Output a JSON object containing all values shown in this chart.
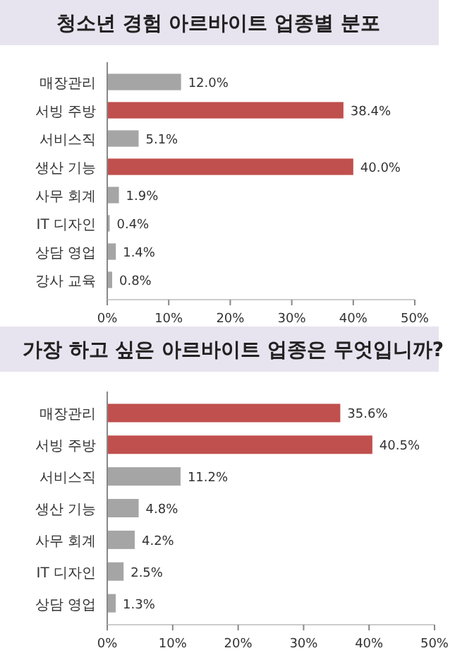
{
  "chart_data": [
    {
      "type": "bar",
      "orientation": "horizontal",
      "title": "청소년 경험 아르바이트 업종별 분포",
      "categories": [
        "매장관리",
        "서빙 주방",
        "서비스직",
        "생산 기능",
        "사무 회계",
        "IT 디자인",
        "상담 영업",
        "강사 교육"
      ],
      "values": [
        12.0,
        38.4,
        5.1,
        40.0,
        1.9,
        0.4,
        1.4,
        0.8
      ],
      "value_labels": [
        "12.0%",
        "38.4%",
        "5.1%",
        "40.0%",
        "1.9%",
        "0.4%",
        "1.4%",
        "0.8%"
      ],
      "colors": [
        "#a5a5a5",
        "#c0504d",
        "#a5a5a5",
        "#c0504d",
        "#a5a5a5",
        "#a5a5a5",
        "#a5a5a5",
        "#a5a5a5"
      ],
      "xlim": [
        0,
        50
      ],
      "xticks": [
        {
          "value": 0,
          "label": "0%"
        },
        {
          "value": 10,
          "label": "10%"
        },
        {
          "value": 20,
          "label": "20%"
        },
        {
          "value": 30,
          "label": "30%"
        },
        {
          "value": 40,
          "label": "40%"
        },
        {
          "value": 50,
          "label": "50%"
        }
      ]
    },
    {
      "type": "bar",
      "orientation": "horizontal",
      "title": "가장 하고 싶은 아르바이트 업종은 무엇입니까?",
      "categories": [
        "매장관리",
        "서빙 주방",
        "서비스직",
        "생산 기능",
        "사무 회계",
        "IT 디자인",
        "상담 영업"
      ],
      "values": [
        35.6,
        40.5,
        11.2,
        4.8,
        4.2,
        2.5,
        1.3
      ],
      "value_labels": [
        "35.6%",
        "40.5%",
        "11.2%",
        "4.8%",
        "4.2%",
        "2.5%",
        "1.3%"
      ],
      "colors": [
        "#c0504d",
        "#c0504d",
        "#a5a5a5",
        "#a5a5a5",
        "#a5a5a5",
        "#a5a5a5",
        "#a5a5a5"
      ],
      "xlim": [
        0,
        50
      ],
      "xticks": [
        {
          "value": 0,
          "label": "0%"
        },
        {
          "value": 10,
          "label": "10%"
        },
        {
          "value": 20,
          "label": "20%"
        },
        {
          "value": 30,
          "label": "30%"
        },
        {
          "value": 40,
          "label": "40%"
        },
        {
          "value": 50,
          "label": "50%"
        }
      ]
    }
  ]
}
